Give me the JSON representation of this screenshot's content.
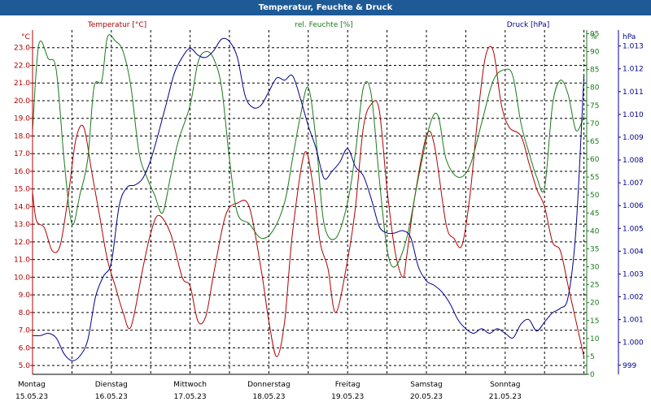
{
  "chart_data": {
    "type": "line",
    "title": "Temperatur, Feuchte & Druck",
    "grid": true,
    "x_ticks": [
      {
        "day": "Montag",
        "date": "15.05.23"
      },
      {
        "day": "Dienstag",
        "date": "16.05.23"
      },
      {
        "day": "Mittwoch",
        "date": "17.05.23"
      },
      {
        "day": "Donnerstag",
        "date": "18.05.23"
      },
      {
        "day": "Freitag",
        "date": "19.05.23"
      },
      {
        "day": "Samstag",
        "date": "20.05.23"
      },
      {
        "day": "Sonntag",
        "date": "21.05.23"
      }
    ],
    "axes": {
      "temperature": {
        "unit": "°C",
        "min": 4.5,
        "max": 24.0,
        "ticks": [
          "5.0",
          "6.0",
          "7.0",
          "8.0",
          "9.0",
          "10.0",
          "11.0",
          "12.0",
          "13.0",
          "14.0",
          "15.0",
          "16.0",
          "17.0",
          "18.0",
          "19.0",
          "20.0",
          "21.0",
          "22.0",
          "23.0"
        ]
      },
      "humidity": {
        "unit": "%",
        "min": 0,
        "max": 96,
        "ticks": [
          "0",
          "5",
          "10",
          "15",
          "20",
          "25",
          "30",
          "35",
          "40",
          "45",
          "50",
          "55",
          "60",
          "65",
          "70",
          "75",
          "80",
          "85",
          "90",
          "95"
        ]
      },
      "pressure": {
        "unit": "hPa",
        "min": 998.6,
        "max": 1013.7,
        "ticks": [
          "999",
          "1.000",
          "1.001",
          "1.002",
          "1.003",
          "1.004",
          "1.005",
          "1.006",
          "1.007",
          "1.008",
          "1.009",
          "1.010",
          "1.011",
          "1.012",
          "1.013"
        ]
      }
    },
    "series": [
      {
        "name": "Temperatur [°C]",
        "axis": "temperature",
        "color": "#b00000",
        "x": [
          0.0,
          0.05,
          0.15,
          0.25,
          0.35,
          0.45,
          0.55,
          0.65,
          0.75,
          0.85,
          0.95,
          1.05,
          1.15,
          1.25,
          1.4,
          1.5,
          1.6,
          1.75,
          1.9,
          2.0,
          2.1,
          2.2,
          2.3,
          2.45,
          2.6,
          2.75,
          2.9,
          3.0,
          3.1,
          3.2,
          3.3,
          3.45,
          3.55,
          3.65,
          3.75,
          3.85,
          4.0,
          4.1,
          4.2,
          4.3,
          4.4,
          4.5,
          4.6,
          4.7,
          4.75,
          4.85,
          5.0,
          5.1,
          5.25,
          5.35,
          5.45,
          5.55,
          5.65,
          5.75,
          5.85,
          5.95,
          6.05,
          6.2,
          6.3,
          6.4,
          6.5,
          6.6,
          6.7,
          6.8,
          6.9,
          7.0
        ],
        "y": [
          14.8,
          13.2,
          12.8,
          11.5,
          11.8,
          14.5,
          17.8,
          18.5,
          16.0,
          13.5,
          11.0,
          9.5,
          8.0,
          7.2,
          10.5,
          12.5,
          13.5,
          12.5,
          10.0,
          9.5,
          7.5,
          7.8,
          10.2,
          13.5,
          14.2,
          14.0,
          10.5,
          7.5,
          5.5,
          7.5,
          12.5,
          17.0,
          15.5,
          12.0,
          10.5,
          8.0,
          11.0,
          14.0,
          18.5,
          19.8,
          19.5,
          15.0,
          11.5,
          10.0,
          11.2,
          14.5,
          18.0,
          17.5,
          13.0,
          12.2,
          11.8,
          14.5,
          19.0,
          22.5,
          22.8,
          19.8,
          18.5,
          18.0,
          16.5,
          15.0,
          14.0,
          12.0,
          11.5,
          9.5,
          7.5,
          5.5
        ]
      },
      {
        "name": "rel. Feuchte [%]",
        "axis": "humidity",
        "color": "#1a7a1a",
        "x": [
          0.0,
          0.08,
          0.2,
          0.3,
          0.4,
          0.5,
          0.6,
          0.7,
          0.78,
          0.88,
          0.95,
          1.05,
          1.15,
          1.25,
          1.35,
          1.45,
          1.55,
          1.65,
          1.75,
          1.85,
          2.0,
          2.1,
          2.2,
          2.3,
          2.4,
          2.5,
          2.6,
          2.75,
          2.9,
          3.05,
          3.2,
          3.3,
          3.4,
          3.5,
          3.6,
          3.7,
          3.85,
          4.0,
          4.1,
          4.2,
          4.3,
          4.4,
          4.5,
          4.6,
          4.75,
          4.9,
          5.05,
          5.15,
          5.25,
          5.4,
          5.55,
          5.7,
          5.85,
          6.0,
          6.1,
          6.2,
          6.3,
          6.4,
          6.5,
          6.6,
          6.7,
          6.8,
          6.9,
          7.0
        ],
        "y": [
          68,
          92,
          88,
          85,
          60,
          42,
          50,
          60,
          80,
          82,
          94,
          93,
          90,
          80,
          62,
          55,
          50,
          45,
          55,
          65,
          75,
          87,
          90,
          88,
          80,
          60,
          45,
          42,
          38,
          40,
          48,
          60,
          72,
          80,
          65,
          42,
          38,
          48,
          62,
          80,
          78,
          55,
          35,
          30,
          38,
          55,
          70,
          72,
          60,
          55,
          58,
          70,
          82,
          85,
          83,
          70,
          62,
          55,
          52,
          75,
          82,
          78,
          68,
          72
        ]
      },
      {
        "name": "Druck [hPa]",
        "axis": "pressure",
        "color": "#00008b",
        "x": [
          0.0,
          0.1,
          0.2,
          0.3,
          0.4,
          0.5,
          0.6,
          0.7,
          0.8,
          0.9,
          1.0,
          1.1,
          1.2,
          1.3,
          1.4,
          1.5,
          1.6,
          1.7,
          1.8,
          1.9,
          2.0,
          2.1,
          2.2,
          2.3,
          2.4,
          2.5,
          2.6,
          2.7,
          2.8,
          2.9,
          3.0,
          3.1,
          3.2,
          3.3,
          3.4,
          3.5,
          3.6,
          3.7,
          3.8,
          3.9,
          4.0,
          4.1,
          4.2,
          4.3,
          4.4,
          4.5,
          4.6,
          4.7,
          4.8,
          4.9,
          5.0,
          5.1,
          5.2,
          5.3,
          5.4,
          5.5,
          5.6,
          5.7,
          5.8,
          5.9,
          6.0,
          6.1,
          6.2,
          6.3,
          6.4,
          6.5,
          6.6,
          6.7,
          6.8,
          6.9,
          7.0
        ],
        "y": [
          1000.3,
          1000.3,
          1000.4,
          1000.2,
          999.5,
          999.2,
          999.4,
          1000.1,
          1002.0,
          1002.9,
          1003.5,
          1006.0,
          1006.8,
          1006.9,
          1007.2,
          1008.0,
          1009.2,
          1010.5,
          1011.8,
          1012.5,
          1012.9,
          1012.6,
          1012.5,
          1012.8,
          1013.3,
          1013.2,
          1012.5,
          1010.8,
          1010.3,
          1010.4,
          1011.0,
          1011.6,
          1011.5,
          1011.7,
          1010.7,
          1009.5,
          1008.5,
          1007.2,
          1007.5,
          1007.9,
          1008.5,
          1007.7,
          1007.3,
          1006.3,
          1005.1,
          1004.8,
          1004.8,
          1004.9,
          1004.6,
          1003.3,
          1002.7,
          1002.5,
          1002.2,
          1001.7,
          1001.0,
          1000.6,
          1000.4,
          1000.6,
          1000.4,
          1000.6,
          1000.4,
          1000.2,
          1000.8,
          1001.0,
          1000.5,
          1000.9,
          1001.3,
          1001.5,
          1002.0,
          1005.0,
          1011.7
        ]
      }
    ]
  }
}
